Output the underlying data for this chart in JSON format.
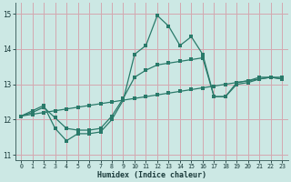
{
  "xlabel": "Humidex (Indice chaleur)",
  "bg_color": "#cce8e4",
  "line_color": "#2a7a6a",
  "grid_color_h": "#d4a8b0",
  "grid_color_v": "#d4a8b0",
  "xlim": [
    -0.5,
    23.5
  ],
  "ylim": [
    10.85,
    15.3
  ],
  "yticks": [
    11,
    12,
    13,
    14,
    15
  ],
  "xticks": [
    0,
    1,
    2,
    3,
    4,
    5,
    6,
    7,
    8,
    9,
    10,
    11,
    12,
    13,
    14,
    15,
    16,
    17,
    18,
    19,
    20,
    21,
    22,
    23
  ],
  "line1_x": [
    0,
    1,
    2,
    3,
    4,
    5,
    6,
    7,
    8,
    9,
    10,
    11,
    12,
    13,
    14,
    15,
    16,
    17,
    18,
    19,
    20,
    21,
    22,
    23
  ],
  "line1_y": [
    12.1,
    12.25,
    12.4,
    11.75,
    11.4,
    11.6,
    11.6,
    11.65,
    12.0,
    12.55,
    13.85,
    14.1,
    14.95,
    14.65,
    14.1,
    14.35,
    13.85,
    12.65,
    12.65,
    13.05,
    13.1,
    13.2,
    13.2,
    13.15
  ],
  "line2_x": [
    0,
    1,
    2,
    3,
    4,
    5,
    6,
    7,
    8,
    9,
    10,
    11,
    12,
    13,
    14,
    15,
    16,
    17,
    18,
    19,
    20,
    21,
    22,
    23
  ],
  "line2_y": [
    12.1,
    12.15,
    12.2,
    12.25,
    12.3,
    12.35,
    12.4,
    12.45,
    12.5,
    12.55,
    12.6,
    12.65,
    12.7,
    12.75,
    12.8,
    12.85,
    12.9,
    12.95,
    13.0,
    13.05,
    13.1,
    13.15,
    13.2,
    13.2
  ],
  "line3_x": [
    0,
    1,
    2,
    3,
    4,
    5,
    6,
    7,
    8,
    9,
    10,
    11,
    12,
    13,
    14,
    15,
    16,
    17,
    18,
    19,
    20,
    21,
    22,
    23
  ],
  "line3_y": [
    12.1,
    12.2,
    12.35,
    12.05,
    11.75,
    11.7,
    11.7,
    11.75,
    12.1,
    12.6,
    13.2,
    13.4,
    13.55,
    13.6,
    13.65,
    13.7,
    13.75,
    12.65,
    12.65,
    13.0,
    13.05,
    13.15,
    13.2,
    13.15
  ],
  "marker_size": 2.2,
  "linewidth": 0.9
}
